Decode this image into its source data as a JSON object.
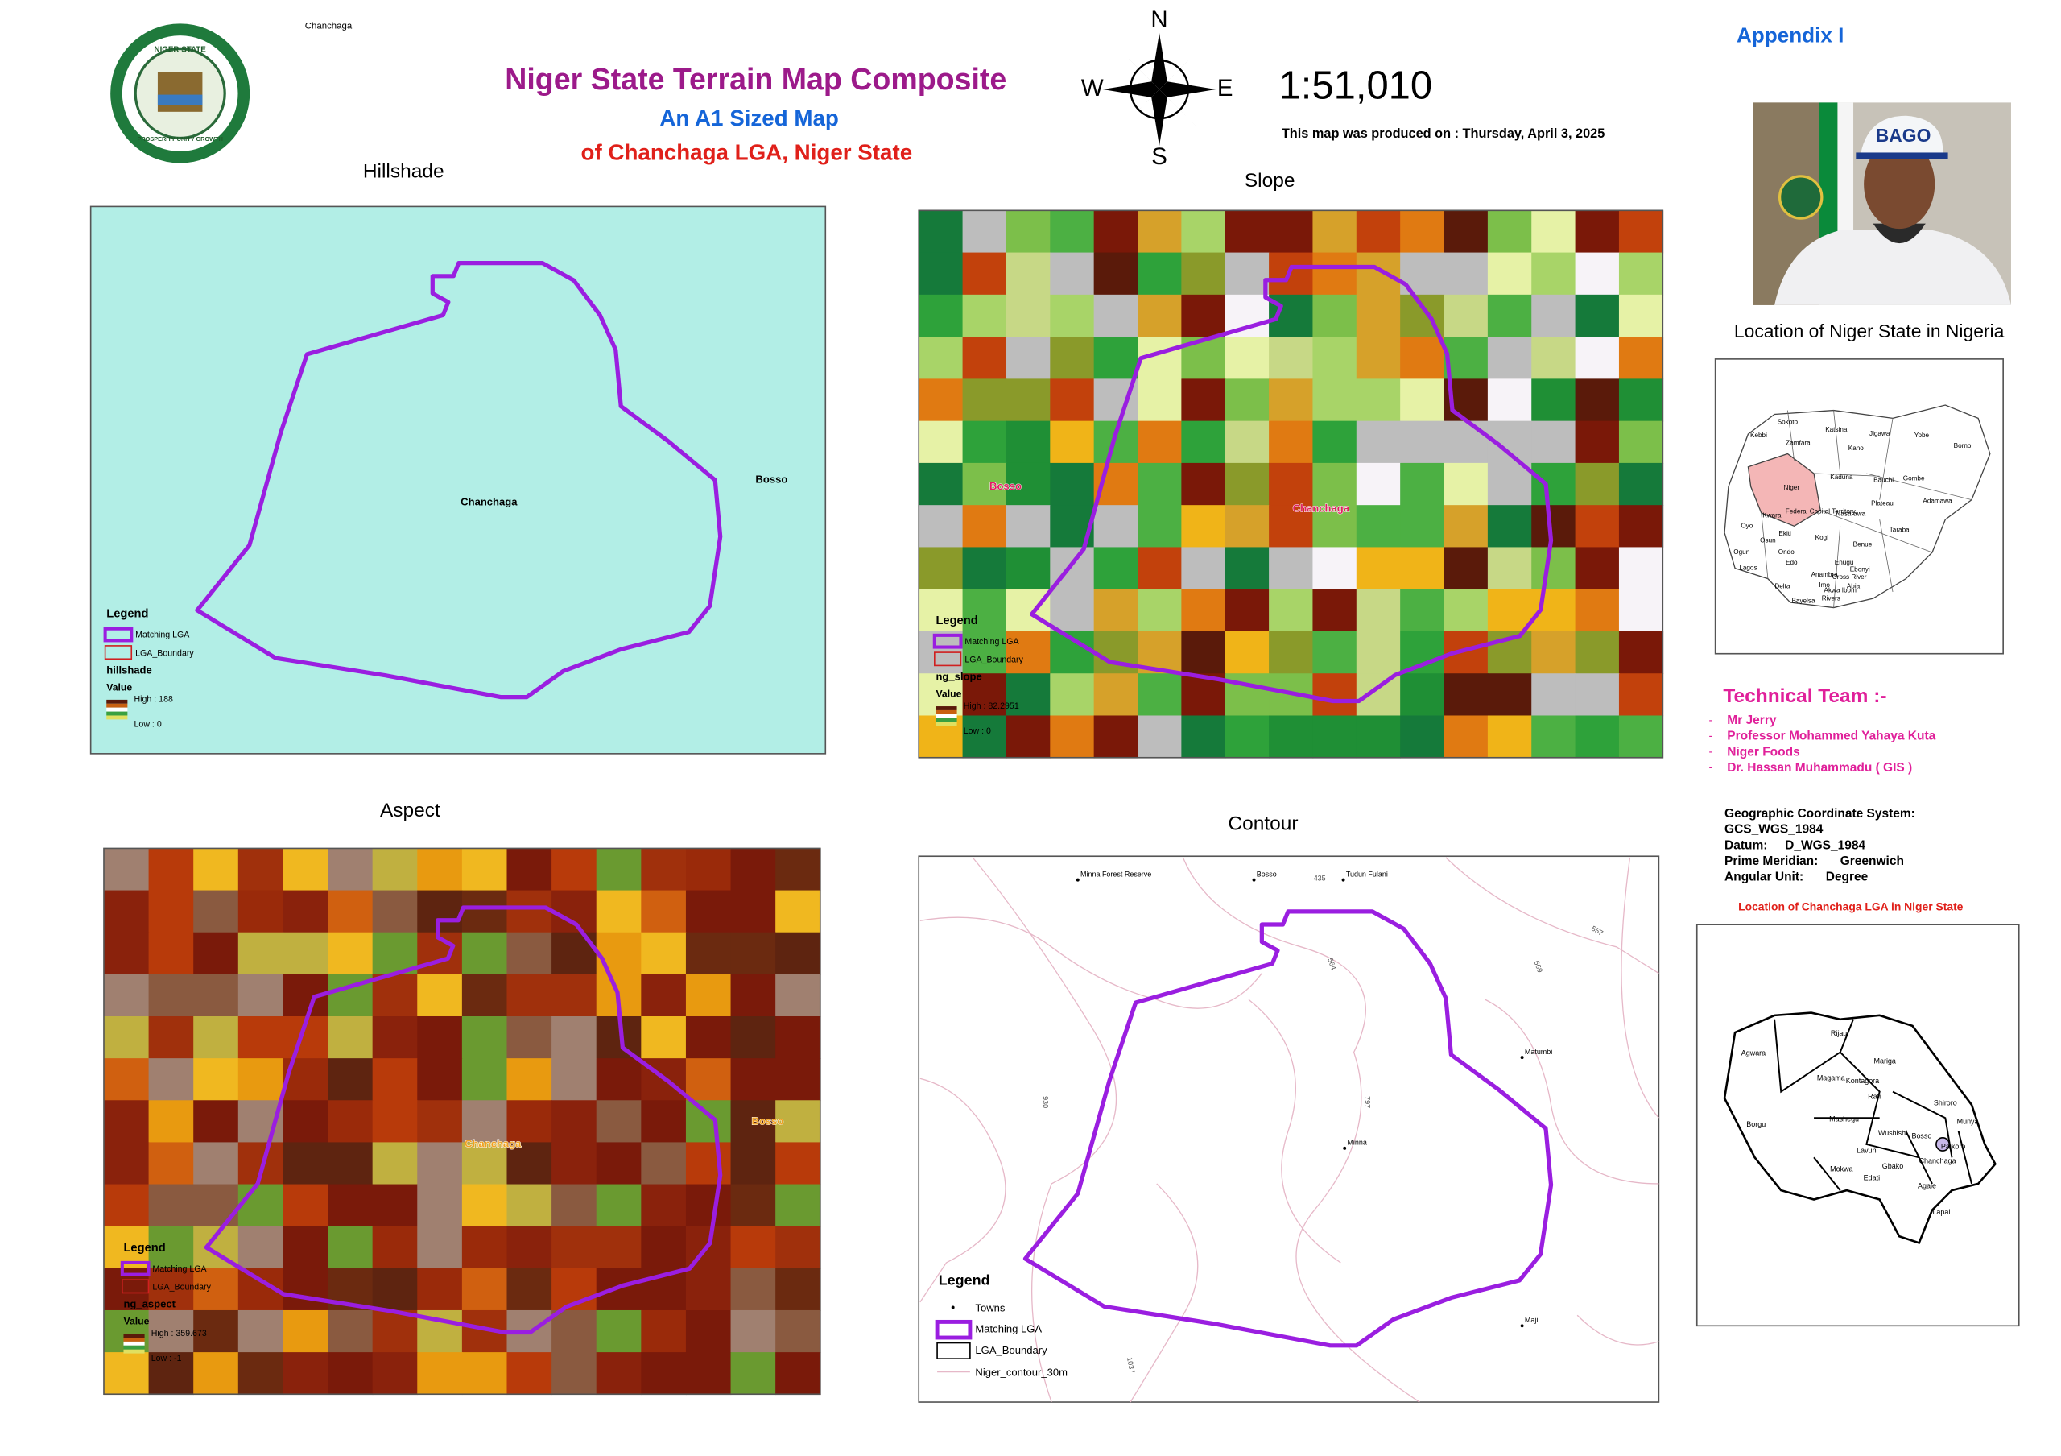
{
  "header": {
    "place_label": "Chanchaga",
    "title": "Niger State Terrain Map Composite",
    "subtitle": "An A1 Sized Map",
    "subtitle2": "of Chanchaga LGA, Niger State",
    "scale": "1:51,010",
    "produced": "This map was produced on : Thursday, April 3, 2025",
    "appendix": "Appendix I"
  },
  "logo": {
    "top": "NIGER STATE",
    "bottom": "PROSPERITY UNITY GROWTH"
  },
  "compass": {
    "n": "N",
    "s": "S",
    "e": "E",
    "w": "W"
  },
  "photo": {
    "cap_text": "BAGO"
  },
  "panels": [
    {
      "title": "Hillshade",
      "labels": [
        "Chanchaga",
        "Bosso"
      ],
      "legend": {
        "title": "Legend",
        "items": [
          "Matching LGA",
          "LGA_Boundary"
        ],
        "layer": "hillshade",
        "value": "Value",
        "high": "High : 188",
        "low": "Low : 0"
      }
    },
    {
      "title": "Slope",
      "labels": [
        "Bosso",
        "Chanchaga"
      ],
      "legend": {
        "title": "Legend",
        "items": [
          "Matching LGA",
          "LGA_Boundary"
        ],
        "layer": "ng_slope",
        "value": "Value",
        "high": "High : 82.2951",
        "low": "Low : 0"
      }
    },
    {
      "title": "Aspect",
      "labels": [
        "Chanchaga",
        "Bosso"
      ],
      "legend": {
        "title": "Legend",
        "items": [
          "Matching LGA",
          "LGA_Boundary"
        ],
        "layer": "ng_aspect",
        "value": "Value",
        "high": "High : 359.673",
        "low": "Low : -1"
      }
    },
    {
      "title": "Contour",
      "towns": [
        "Minna Forest Reserve",
        "Bosso",
        "Tudun Fulani",
        "Matumbi",
        "Minna",
        "Maji"
      ],
      "contour_labels": [
        "435",
        "557",
        "564",
        "669",
        "930",
        "797",
        "1037"
      ],
      "legend": {
        "title": "Legend",
        "items": [
          "Towns",
          "Matching LGA",
          "LGA_Boundary",
          "Niger_contour_30m"
        ]
      }
    }
  ],
  "nigeria_inset": {
    "title": "Location of Niger State in Nigeria",
    "states": [
      "Sokoto",
      "Katsina",
      "Jigawa",
      "Yobe",
      "Borno",
      "Kebbi",
      "Zamfara",
      "Kano",
      "Niger",
      "Kaduna",
      "Bauchi",
      "Gombe",
      "Adamawa",
      "Federal Capital Territory",
      "Nasarawa",
      "Plateau",
      "Kwara",
      "Oyo",
      "Ekiti",
      "Kogi",
      "Benue",
      "Taraba",
      "Osun",
      "Ondo",
      "Edo",
      "Ogun",
      "Lagos",
      "Enugu",
      "Ebonyi",
      "Anambra",
      "Delta",
      "Imo",
      "Cross River",
      "Bayelsa",
      "Rivers",
      "Akwa Ibom",
      "Abia"
    ]
  },
  "team": {
    "title": "Technical Team :-",
    "members": [
      "Mr Jerry",
      "Professor Mohammed Yahaya Kuta",
      "Niger Foods",
      "Dr. Hassan Muhammadu ( GIS )"
    ]
  },
  "coordinate_system": {
    "heading": "Geographic Coordinate System:",
    "gcs": "GCS_WGS_1984",
    "datum_label": "Datum:",
    "datum": "D_WGS_1984",
    "meridian_label": "Prime Meridian:",
    "meridian": "Greenwich",
    "unit_label": "Angular Unit:",
    "unit": "Degree"
  },
  "niger_inset": {
    "title": "Location of Chanchaga LGA in Niger State",
    "lgas": [
      "Rijau",
      "Agwara",
      "Mariga",
      "Magama",
      "Kontagora",
      "Borgu",
      "Rafi",
      "Shiroro",
      "Mashegu",
      "Wushishi",
      "Bosso",
      "Munya",
      "Lavun",
      "Paikoro",
      "Mokwa",
      "Gbako",
      "Chanchaga",
      "Edati",
      "Agaie",
      "Lapai"
    ]
  }
}
